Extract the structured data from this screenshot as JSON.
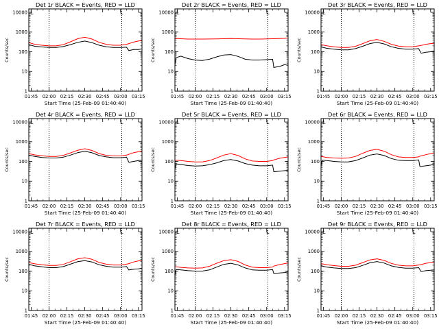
{
  "colors": {
    "events": "#000000",
    "lld": "#ff0000",
    "background": "#ffffff",
    "axis": "#000000"
  },
  "shared": {
    "xlabel": "Start Time (25-Feb-09 01:40:40)",
    "ylabel": "Counts/sec",
    "x_ticks": [
      "01:45",
      "02:00",
      "02:15",
      "02:30",
      "02:45",
      "03:00",
      "03:15"
    ],
    "x_tick_minutes": [
      105,
      120,
      135,
      150,
      165,
      180,
      195
    ],
    "y_ticks": [
      "1",
      "10",
      "100",
      "1000",
      "10000"
    ],
    "y_tick_values": [
      1,
      10,
      100,
      1000,
      10000
    ],
    "xlim_minutes": [
      103,
      198
    ],
    "ylim": [
      1,
      15000
    ],
    "y_scale": "log",
    "dotted_lines_minutes": [
      120,
      181
    ],
    "corner_marker": "L"
  },
  "chart_data": [
    {
      "type": "line",
      "title": "Det 1r BLACK = Events, RED = LLD",
      "x_minutes": [
        103,
        108,
        114,
        120,
        126,
        132,
        138,
        144,
        150,
        156,
        162,
        168,
        174,
        180,
        185,
        187,
        191,
        195,
        198
      ],
      "series": [
        {
          "values": [
            230,
            190,
            175,
            165,
            165,
            185,
            230,
            300,
            350,
            290,
            215,
            180,
            165,
            165,
            170,
            115,
            130,
            130,
            140
          ]
        },
        {
          "values": [
            290,
            240,
            215,
            200,
            200,
            230,
            320,
            460,
            550,
            440,
            300,
            240,
            215,
            215,
            240,
            260,
            310,
            350,
            380
          ]
        }
      ]
    },
    {
      "type": "line",
      "title": "Det 2r BLACK = Events, RED = LLD",
      "x_minutes": [
        103,
        104,
        108,
        114,
        120,
        126,
        132,
        138,
        144,
        150,
        156,
        162,
        168,
        174,
        180,
        185,
        186,
        191,
        195,
        198
      ],
      "series": [
        {
          "values": [
            20,
            50,
            60,
            45,
            38,
            36,
            42,
            55,
            68,
            72,
            58,
            42,
            38,
            38,
            40,
            42,
            16,
            18,
            22,
            25
          ]
        },
        {
          "values": [
            480,
            470,
            460,
            440,
            440,
            440,
            445,
            450,
            460,
            470,
            460,
            450,
            440,
            440,
            450,
            460,
            460,
            470,
            480,
            500
          ]
        }
      ]
    },
    {
      "type": "line",
      "title": "Det 3r BLACK = Events, RED = LLD",
      "x_minutes": [
        103,
        108,
        114,
        120,
        126,
        132,
        138,
        144,
        150,
        156,
        162,
        168,
        174,
        180,
        185,
        187,
        191,
        195,
        198
      ],
      "series": [
        {
          "values": [
            175,
            150,
            135,
            125,
            125,
            145,
            190,
            260,
            300,
            250,
            180,
            150,
            135,
            135,
            145,
            85,
            95,
            100,
            110
          ]
        },
        {
          "values": [
            230,
            200,
            180,
            165,
            165,
            190,
            260,
            360,
            420,
            340,
            240,
            195,
            180,
            180,
            200,
            210,
            240,
            260,
            270
          ]
        }
      ]
    },
    {
      "type": "line",
      "title": "Det 4r BLACK = Events, RED = LLD",
      "x_minutes": [
        103,
        108,
        114,
        120,
        126,
        132,
        138,
        144,
        150,
        156,
        162,
        168,
        174,
        180,
        185,
        187,
        191,
        195,
        198
      ],
      "series": [
        {
          "values": [
            210,
            180,
            160,
            150,
            150,
            165,
            210,
            280,
            330,
            275,
            200,
            170,
            155,
            155,
            165,
            90,
            100,
            110,
            115
          ]
        },
        {
          "values": [
            250,
            215,
            195,
            180,
            180,
            205,
            270,
            370,
            440,
            360,
            250,
            205,
            190,
            190,
            210,
            230,
            280,
            310,
            340
          ]
        }
      ]
    },
    {
      "type": "line",
      "title": "Det 5r BLACK = Events, RED = LLD",
      "x_minutes": [
        103,
        104,
        108,
        114,
        120,
        126,
        132,
        138,
        144,
        150,
        156,
        162,
        168,
        174,
        180,
        185,
        186,
        191,
        195,
        198
      ],
      "series": [
        {
          "values": [
            40,
            75,
            70,
            62,
            58,
            60,
            68,
            85,
            110,
            125,
            105,
            78,
            65,
            60,
            60,
            65,
            30,
            32,
            34,
            36
          ]
        },
        {
          "values": [
            110,
            115,
            110,
            100,
            95,
            95,
            110,
            150,
            210,
            250,
            200,
            135,
            105,
            100,
            100,
            110,
            120,
            145,
            160,
            170
          ]
        }
      ]
    },
    {
      "type": "line",
      "title": "Det 6r BLACK = Events, RED = LLD",
      "x_minutes": [
        103,
        104,
        108,
        114,
        120,
        126,
        132,
        138,
        144,
        150,
        156,
        162,
        168,
        174,
        180,
        185,
        186,
        191,
        195,
        198
      ],
      "series": [
        {
          "values": [
            60,
            115,
            110,
            100,
            95,
            95,
            110,
            150,
            210,
            240,
            200,
            140,
            115,
            110,
            110,
            120,
            55,
            60,
            65,
            70
          ]
        },
        {
          "values": [
            180,
            175,
            160,
            150,
            145,
            150,
            180,
            260,
            360,
            410,
            330,
            220,
            170,
            160,
            160,
            170,
            185,
            220,
            250,
            270
          ]
        }
      ]
    },
    {
      "type": "line",
      "title": "Det 7r BLACK = Events, RED = LLD",
      "x_minutes": [
        103,
        108,
        114,
        120,
        126,
        132,
        138,
        144,
        150,
        156,
        162,
        168,
        174,
        180,
        185,
        187,
        191,
        195,
        198
      ],
      "series": [
        {
          "values": [
            220,
            185,
            165,
            150,
            150,
            170,
            225,
            300,
            340,
            290,
            210,
            175,
            160,
            160,
            170,
            115,
            125,
            130,
            140
          ]
        },
        {
          "values": [
            270,
            235,
            210,
            195,
            195,
            220,
            300,
            420,
            480,
            400,
            275,
            225,
            205,
            205,
            225,
            240,
            290,
            330,
            350
          ]
        }
      ]
    },
    {
      "type": "line",
      "title": "Det 8r BLACK = Events, RED = LLD",
      "x_minutes": [
        103,
        104,
        108,
        114,
        120,
        126,
        132,
        138,
        144,
        150,
        156,
        162,
        168,
        174,
        180,
        185,
        186,
        191,
        195,
        198
      ],
      "series": [
        {
          "values": [
            60,
            120,
            115,
            105,
            100,
            100,
            115,
            160,
            220,
            250,
            205,
            145,
            115,
            110,
            110,
            120,
            75,
            80,
            85,
            90
          ]
        },
        {
          "values": [
            170,
            165,
            155,
            145,
            140,
            145,
            175,
            250,
            340,
            380,
            310,
            205,
            160,
            150,
            150,
            160,
            180,
            215,
            240,
            260
          ]
        }
      ]
    },
    {
      "type": "line",
      "title": "Det 9r BLACK = Events, RED = LLD",
      "x_minutes": [
        103,
        108,
        114,
        120,
        126,
        132,
        138,
        144,
        150,
        156,
        162,
        168,
        174,
        180,
        185,
        187,
        191,
        195,
        198
      ],
      "series": [
        {
          "values": [
            185,
            160,
            145,
            135,
            135,
            150,
            195,
            265,
            305,
            255,
            185,
            155,
            140,
            140,
            150,
            95,
            105,
            110,
            115
          ]
        },
        {
          "values": [
            240,
            210,
            190,
            175,
            175,
            200,
            270,
            370,
            420,
            350,
            245,
            200,
            185,
            185,
            205,
            215,
            250,
            270,
            280
          ]
        }
      ]
    }
  ]
}
